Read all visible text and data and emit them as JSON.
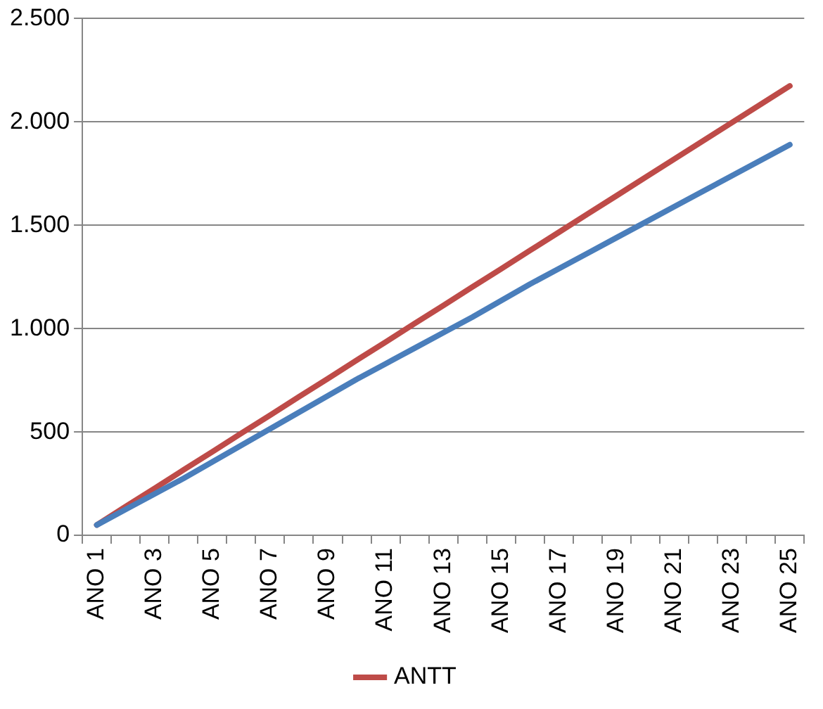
{
  "chart_data": {
    "type": "line",
    "categories": [
      "ANO 1",
      null,
      "ANO 3",
      null,
      "ANO 5",
      null,
      "ANO 7",
      null,
      "ANO 9",
      null,
      "ANO 11",
      null,
      "ANO 13",
      null,
      "ANO 15",
      null,
      "ANO 17",
      null,
      "ANO 19",
      null,
      "ANO 21",
      null,
      "ANO 23",
      null,
      "ANO 25"
    ],
    "series": [
      {
        "color": "#4a7ebb",
        "values": [
          50,
          125,
          200,
          275,
          355,
          435,
          515,
          595,
          675,
          755,
          830,
          905,
          980,
          1055,
          1135,
          1215,
          1290,
          1365,
          1440,
          1515,
          1590,
          1665,
          1740,
          1815,
          1890
        ]
      },
      {
        "name": "ANTT",
        "color": "#be4b48",
        "values": [
          50,
          139,
          227,
          316,
          404,
          493,
          581,
          670,
          758,
          847,
          935,
          1024,
          1112,
          1201,
          1289,
          1378,
          1466,
          1555,
          1643,
          1732,
          1820,
          1909,
          1997,
          2086,
          2174
        ]
      }
    ],
    "ylim": [
      0,
      2500
    ],
    "yticks": [
      0,
      500,
      {
        "value": 1000,
        "label": "1.000"
      },
      {
        "value": 1500,
        "label": "1.500"
      },
      {
        "value": 2000,
        "label": "2.000"
      },
      {
        "value": 2500,
        "label": "2.500"
      }
    ],
    "grid": "y",
    "legend": "bottom",
    "marker": "none",
    "line_style": "solid"
  }
}
